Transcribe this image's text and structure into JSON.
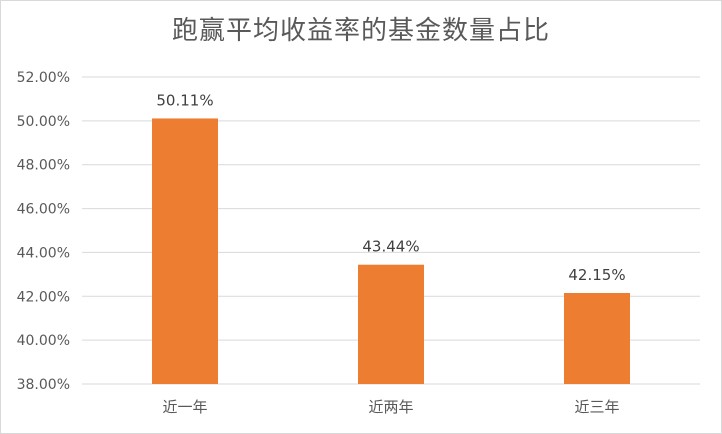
{
  "chart_data": {
    "type": "bar",
    "title": "跑赢平均收益率的基金数量占比",
    "categories": [
      "近一年",
      "近两年",
      "近三年"
    ],
    "values": [
      50.11,
      43.44,
      42.15
    ],
    "data_labels": [
      "50.11%",
      "43.44%",
      "42.15%"
    ],
    "ylim": [
      38,
      52
    ],
    "yticks": [
      38,
      40,
      42,
      44,
      46,
      48,
      50,
      52
    ],
    "ytick_labels": [
      "38.00%",
      "40.00%",
      "42.00%",
      "44.00%",
      "46.00%",
      "48.00%",
      "50.00%",
      "52.00%"
    ],
    "grid": true,
    "bar_color": "#ed7d31",
    "grid_color": "#d9d9d9",
    "xlabel": "",
    "ylabel": ""
  }
}
